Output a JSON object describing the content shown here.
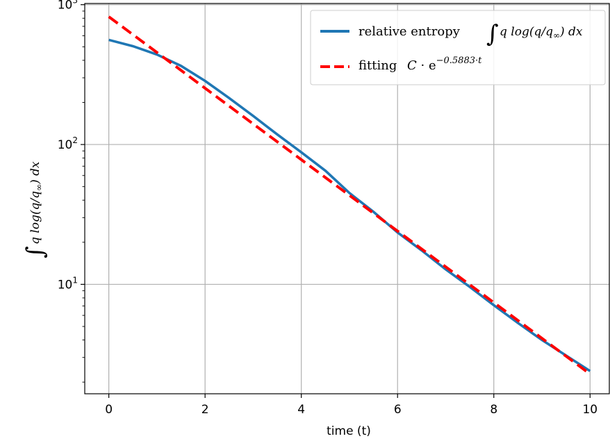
{
  "chart_data": {
    "type": "line",
    "xlabel": "time (t)",
    "ylabel": "∫ q log(q/q∞) dx",
    "yscale": "log",
    "xlim": [
      -0.5,
      10.4
    ],
    "ylim": [
      1.65,
      1020
    ],
    "grid": true,
    "legend_position": "top-right",
    "x_ticks": [
      0,
      2,
      4,
      6,
      8,
      10
    ],
    "x_tick_labels": [
      "0",
      "2",
      "4",
      "6",
      "8",
      "10"
    ],
    "y_ticks": [
      10,
      100,
      1000
    ],
    "y_tick_labels": [
      {
        "base": "10",
        "exp": "1"
      },
      {
        "base": "10",
        "exp": "2"
      },
      {
        "base": "10",
        "exp": "3"
      }
    ],
    "series": [
      {
        "name": "relative entropy ∫ q log(q/q∞) dx",
        "style": "solid",
        "color": "#1f77b4",
        "x": [
          0,
          0.5,
          1,
          1.5,
          2,
          2.5,
          3,
          3.5,
          4,
          4.5,
          5,
          5.5,
          6,
          6.5,
          7,
          7.5,
          8,
          8.5,
          9,
          9.5,
          10
        ],
        "y": [
          560,
          505,
          440,
          365,
          285,
          215,
          160,
          118,
          88,
          65,
          45,
          33,
          23.5,
          17.5,
          12.8,
          9.6,
          7.1,
          5.3,
          4.0,
          3.1,
          2.4
        ]
      },
      {
        "name": "fitting C · e^(−0.5883·t)",
        "style": "dashed",
        "color": "#ff0000",
        "rate": -0.5883,
        "C": 820,
        "x": [
          0,
          10
        ]
      }
    ],
    "legend": [
      {
        "prefix": "relative entropy",
        "math": "q log(q/q∞) dx",
        "integral": true
      },
      {
        "prefix": "fitting",
        "math": "C · e",
        "exp": "−0.5883·t"
      }
    ]
  }
}
